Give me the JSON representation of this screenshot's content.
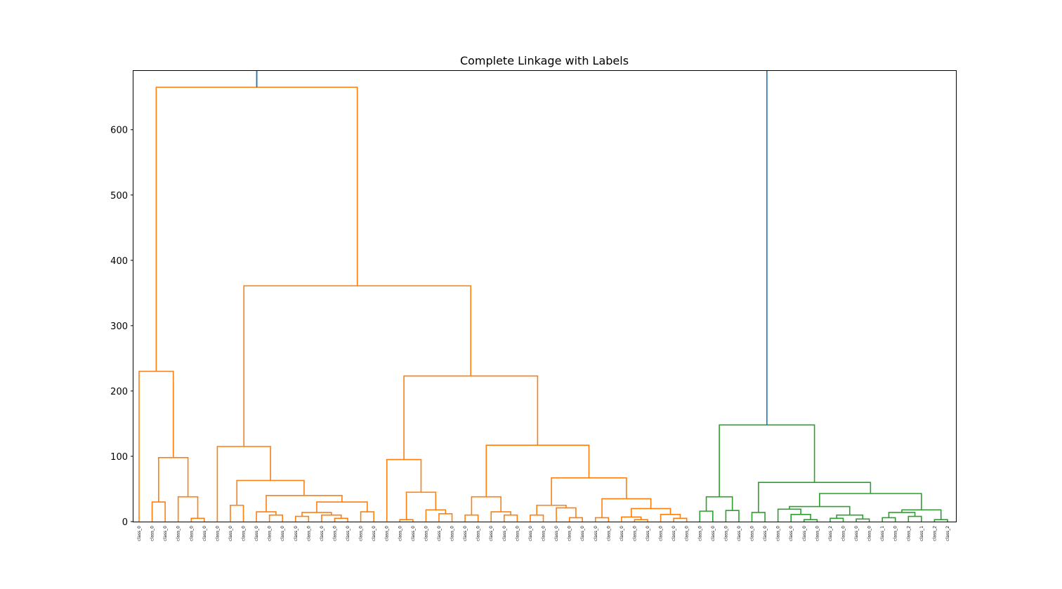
{
  "chart_data": {
    "type": "dendrogram",
    "title": "Complete Linkage with Labels",
    "xlabel": "",
    "ylabel": "",
    "ylim": [
      0,
      690
    ],
    "yticks": [
      0,
      100,
      200,
      300,
      400,
      500,
      600
    ],
    "grid": false,
    "colors": {
      "cluster_orange": "#ff7f0e",
      "cluster_green": "#2ca02c",
      "root_link": "#1f77b4",
      "axis": "#000000"
    },
    "leaf_labels": [
      "class_0",
      "class_0",
      "class_0",
      "class_0",
      "class_0",
      "class_0",
      "class_0",
      "class_0",
      "class_0",
      "class_0",
      "class_0",
      "class_0",
      "class_0",
      "class_0",
      "class_0",
      "class_0",
      "class_0",
      "class_0",
      "class_0",
      "class_0",
      "class_0",
      "class_0",
      "class_0",
      "class_0",
      "class_0",
      "class_0",
      "class_0",
      "class_0",
      "class_0",
      "class_0",
      "class_0",
      "class_0",
      "class_0",
      "class_0",
      "class_0",
      "class_0",
      "class_0",
      "class_0",
      "class_0",
      "class_0",
      "class_0",
      "class_0",
      "class_0",
      "class_0",
      "class_0",
      "class_0",
      "class_0",
      "class_0",
      "class_0",
      "class_0",
      "class_0",
      "class_0",
      "class_0",
      "class_2",
      "class_0",
      "class_0",
      "class_0",
      "class_1",
      "class_0",
      "class_2",
      "class_1",
      "class_2",
      "class_2"
    ],
    "merges": [
      {
        "left": 1,
        "right": 2,
        "height": 30,
        "color": "orange"
      },
      {
        "left": 4,
        "right": 5,
        "height": 5,
        "color": "orange"
      },
      {
        "left": 3,
        "right": "m1",
        "height": 38,
        "color": "orange"
      },
      {
        "left": "m0",
        "right": "m2",
        "height": 98,
        "color": "orange"
      },
      {
        "left": 0,
        "right": "m3",
        "height": 230,
        "color": "orange"
      },
      {
        "left": 7,
        "right": 8,
        "height": 25,
        "color": "orange"
      },
      {
        "left": 10,
        "right": 11,
        "height": 10,
        "color": "orange"
      },
      {
        "left": 9,
        "right": "m6",
        "height": 15,
        "color": "orange"
      },
      {
        "left": 12,
        "right": 13,
        "height": 8,
        "color": "orange"
      },
      {
        "left": 15,
        "right": 16,
        "height": 5,
        "color": "orange"
      },
      {
        "left": 14,
        "right": "m9",
        "height": 10,
        "color": "orange"
      },
      {
        "left": "m8",
        "right": "m10",
        "height": 14,
        "color": "orange"
      },
      {
        "left": 17,
        "right": 18,
        "height": 15,
        "color": "orange"
      },
      {
        "left": "m11",
        "right": "m12",
        "height": 30,
        "color": "orange"
      },
      {
        "left": "m7",
        "right": "m13",
        "height": 40,
        "color": "orange"
      },
      {
        "left": "m5",
        "right": "m14",
        "height": 63,
        "color": "orange"
      },
      {
        "left": 6,
        "right": "m15",
        "height": 115,
        "color": "orange"
      },
      {
        "left": 20,
        "right": 21,
        "height": 3,
        "color": "orange"
      },
      {
        "left": 23,
        "right": 24,
        "height": 12,
        "color": "orange"
      },
      {
        "left": 22,
        "right": "m18",
        "height": 18,
        "color": "orange"
      },
      {
        "left": "m17",
        "right": "m19",
        "height": 45,
        "color": "orange"
      },
      {
        "left": 19,
        "right": "m20",
        "height": 95,
        "color": "orange"
      },
      {
        "left": 25,
        "right": 26,
        "height": 10,
        "color": "orange"
      },
      {
        "left": 28,
        "right": 29,
        "height": 10,
        "color": "orange"
      },
      {
        "left": 27,
        "right": "m23",
        "height": 15,
        "color": "orange"
      },
      {
        "left": "m22",
        "right": "m24",
        "height": 38,
        "color": "orange"
      },
      {
        "left": 30,
        "right": 31,
        "height": 10,
        "color": "orange"
      },
      {
        "left": 33,
        "right": 34,
        "height": 6,
        "color": "orange"
      },
      {
        "left": 32,
        "right": "m27",
        "height": 21,
        "color": "orange"
      },
      {
        "left": "m26",
        "right": "m28",
        "height": 25,
        "color": "orange"
      },
      {
        "left": 35,
        "right": 36,
        "height": 6,
        "color": "orange"
      },
      {
        "left": 38,
        "right": 39,
        "height": 3,
        "color": "orange"
      },
      {
        "left": 37,
        "right": "m31",
        "height": 7,
        "color": "orange"
      },
      {
        "left": 41,
        "right": 42,
        "height": 5,
        "color": "orange"
      },
      {
        "left": 40,
        "right": "m33",
        "height": 11,
        "color": "orange"
      },
      {
        "left": "m32",
        "right": "m34",
        "height": 20,
        "color": "orange"
      },
      {
        "left": "m30",
        "right": "m35",
        "height": 35,
        "color": "orange"
      },
      {
        "left": "m29",
        "right": "m36",
        "height": 67,
        "color": "orange"
      },
      {
        "left": "m25",
        "right": "m37",
        "height": 117,
        "color": "orange"
      },
      {
        "left": "m21",
        "right": "m38",
        "height": 223,
        "color": "orange"
      },
      {
        "left": "m16",
        "right": "m39",
        "height": 361,
        "color": "orange"
      },
      {
        "left": "m4",
        "right": "m40",
        "height": 665,
        "color": "orange"
      },
      {
        "left": 43,
        "right": 44,
        "height": 16,
        "color": "green"
      },
      {
        "left": 45,
        "right": 46,
        "height": 17,
        "color": "green"
      },
      {
        "left": "m42",
        "right": "m43",
        "height": 38,
        "color": "green"
      },
      {
        "left": 47,
        "right": 48,
        "height": 14,
        "color": "green"
      },
      {
        "left": 51,
        "right": 52,
        "height": 3,
        "color": "green"
      },
      {
        "left": 50,
        "right": "m46",
        "height": 11,
        "color": "green"
      },
      {
        "left": 49,
        "right": "m47",
        "height": 19,
        "color": "green"
      },
      {
        "left": 53,
        "right": 54,
        "height": 5,
        "color": "green"
      },
      {
        "left": 55,
        "right": 56,
        "height": 4,
        "color": "green"
      },
      {
        "left": "m49",
        "right": "m50",
        "height": 10,
        "color": "green"
      },
      {
        "left": "m48",
        "right": "m51",
        "height": 23,
        "color": "green"
      },
      {
        "left": 57,
        "right": 58,
        "height": 6,
        "color": "green"
      },
      {
        "left": 59,
        "right": 60,
        "height": 8,
        "color": "green"
      },
      {
        "left": "m53",
        "right": "m54",
        "height": 14,
        "color": "green"
      },
      {
        "left": 61,
        "right": 62,
        "height": 3,
        "color": "green"
      },
      {
        "left": "m55",
        "right": "m56",
        "height": 18,
        "color": "green"
      },
      {
        "left": "m52",
        "right": "m57",
        "height": 43,
        "color": "green"
      },
      {
        "left": "m45",
        "right": "m58",
        "height": 60,
        "color": "green"
      },
      {
        "left": "m44",
        "right": "m59",
        "height": 148,
        "color": "green"
      },
      {
        "left": "m41",
        "right": "m60",
        "height": 700,
        "color": "root"
      }
    ]
  }
}
